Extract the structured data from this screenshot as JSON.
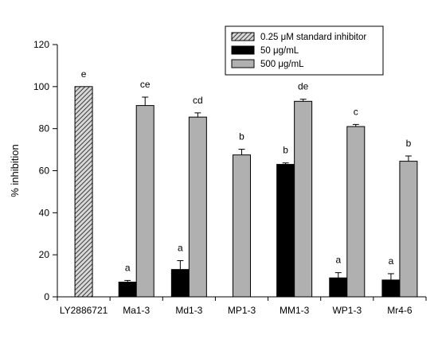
{
  "chart_data": {
    "type": "bar",
    "title": "",
    "xlabel": "",
    "ylabel": "% inhibition",
    "ylim": [
      0,
      120
    ],
    "yticks": [
      0,
      20,
      40,
      60,
      80,
      100,
      120
    ],
    "categories": [
      "LY2886721",
      "Ma1-3",
      "Md1-3",
      "MP1-3",
      "MM1-3",
      "WP1-3",
      "Mr4-6"
    ],
    "legend_position": "top-right",
    "grid": false,
    "series": [
      {
        "name": "0.25 μM standard inhibitor",
        "pattern": "hatched",
        "color": "#707070",
        "values": [
          100,
          null,
          null,
          null,
          null,
          null,
          null
        ],
        "errors": [
          0,
          null,
          null,
          null,
          null,
          null,
          null
        ],
        "labels": [
          "e",
          null,
          null,
          null,
          null,
          null,
          null
        ]
      },
      {
        "name": "50 μg/mL",
        "pattern": "solid",
        "color": "#000000",
        "values": [
          null,
          7,
          13,
          null,
          63,
          9,
          8
        ],
        "errors": [
          null,
          0.8,
          4.2,
          null,
          0.7,
          2.5,
          3
        ],
        "labels": [
          null,
          "a",
          "a",
          null,
          "b",
          "a",
          "a"
        ]
      },
      {
        "name": "500 μg/mL",
        "pattern": "solid",
        "color": "#b0b0b0",
        "values": [
          null,
          91,
          85.5,
          67.5,
          93,
          81,
          64.5
        ],
        "errors": [
          null,
          4,
          2,
          2.7,
          1,
          1,
          2.5
        ],
        "labels": [
          null,
          "ce",
          "cd",
          "b",
          "de",
          "c",
          "b"
        ]
      }
    ]
  }
}
